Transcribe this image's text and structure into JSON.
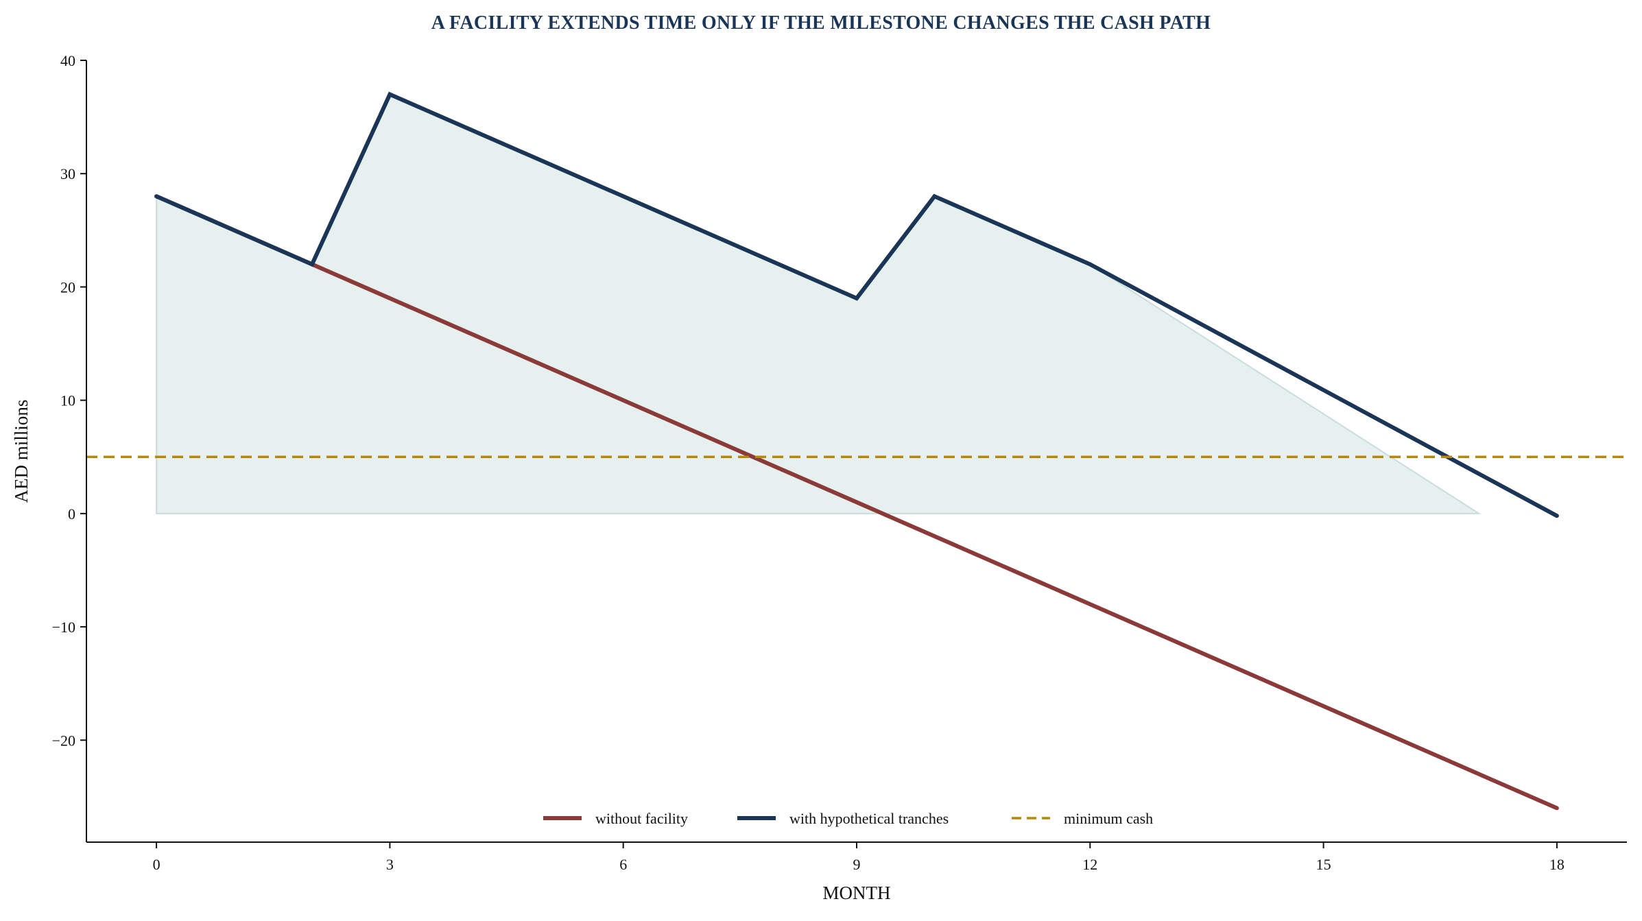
{
  "chart_data": {
    "type": "line",
    "title": "A FACILITY EXTENDS TIME ONLY IF THE MILESTONE CHANGES THE CASH PATH",
    "xlabel": "MONTH",
    "ylabel": "AED millions",
    "xlim": [
      -0.9,
      18.9
    ],
    "ylim": [
      -29,
      40
    ],
    "xticks": [
      0,
      3,
      6,
      9,
      12,
      15,
      18
    ],
    "yticks": [
      -20,
      -10,
      0,
      10,
      20,
      30,
      40
    ],
    "xtick_labels": [
      "0",
      "3",
      "6",
      "9",
      "12",
      "15",
      "18"
    ],
    "ytick_labels": [
      "−20",
      "−10",
      "0",
      "10",
      "20",
      "30",
      "40"
    ],
    "grid": false,
    "legend_position": "lower-center",
    "series": [
      {
        "name": "without facility",
        "color": "#8b3a3a",
        "style": "solid",
        "x": [
          0,
          2,
          18
        ],
        "y": [
          28,
          22,
          -26
        ]
      },
      {
        "name": "with hypothetical tranches",
        "color": "#1b3556",
        "style": "solid",
        "x": [
          0,
          2,
          3,
          9,
          10,
          12,
          18
        ],
        "y": [
          28,
          22,
          37,
          19,
          28,
          22,
          -0.2
        ]
      },
      {
        "name": "minimum cash",
        "color": "#b8860b",
        "style": "dashed",
        "y_constant": 5
      }
    ],
    "shaded_area": {
      "color": "#b7d3cf",
      "x": [
        0,
        2,
        3,
        9,
        10,
        12,
        17
      ],
      "y": [
        28,
        22,
        37,
        19,
        28,
        22,
        0
      ]
    },
    "colors": {
      "title": "#1b3556",
      "axis": "#111111"
    }
  }
}
